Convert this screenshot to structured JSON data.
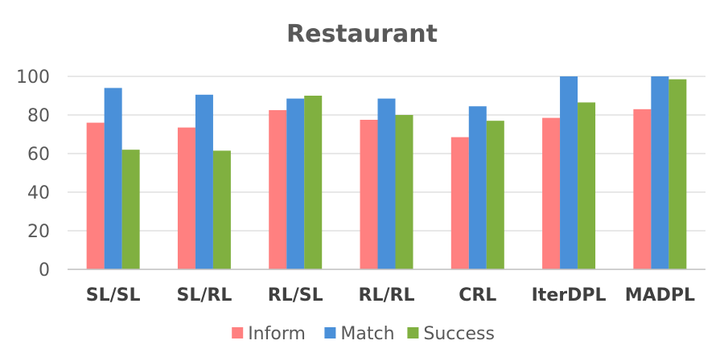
{
  "chart_data": {
    "type": "bar",
    "title": "Restaurant",
    "xlabel": "",
    "ylabel": "",
    "ylim": [
      0,
      100
    ],
    "yticks": [
      0,
      20,
      40,
      60,
      80,
      100
    ],
    "grid": true,
    "legend_position": "bottom",
    "categories": [
      "SL/SL",
      "SL/RL",
      "RL/SL",
      "RL/RL",
      "CRL",
      "IterDPL",
      "MADPL"
    ],
    "series": [
      {
        "name": "Inform",
        "color": "#ff8080",
        "values": [
          76,
          73.5,
          82.5,
          77.5,
          68.5,
          78.5,
          83
        ]
      },
      {
        "name": "Match",
        "color": "#4a90d9",
        "values": [
          94,
          90.5,
          88.5,
          88.5,
          84.5,
          100,
          100
        ]
      },
      {
        "name": "Success",
        "color": "#80b040",
        "values": [
          62,
          61.5,
          90,
          80,
          77,
          86.5,
          98.5
        ]
      }
    ]
  }
}
